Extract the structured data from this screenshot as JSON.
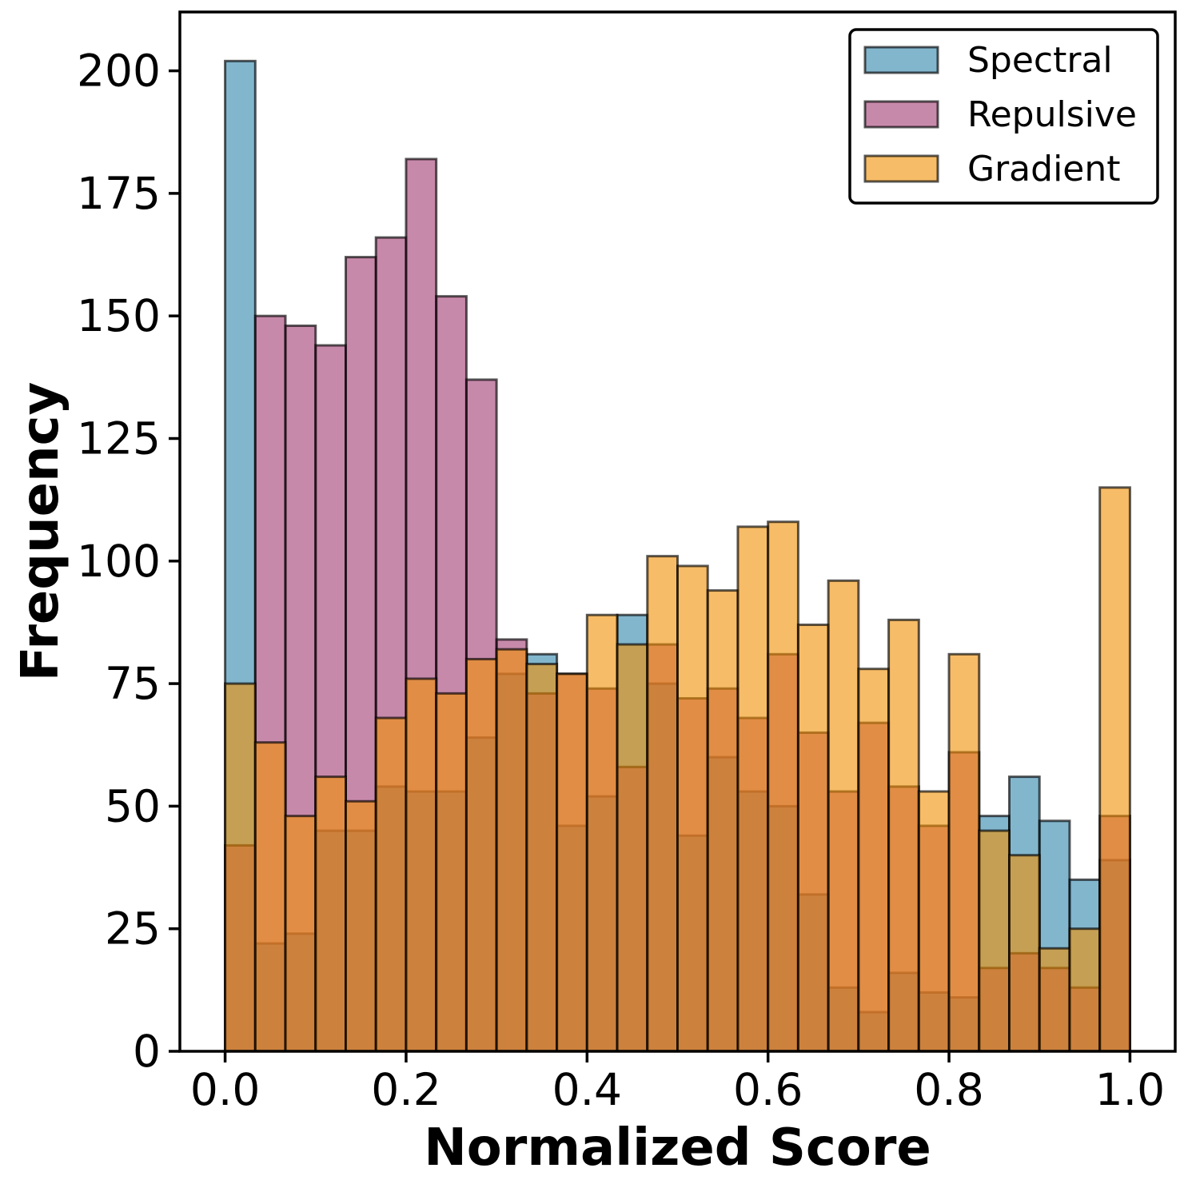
{
  "chart_data": {
    "type": "histogram",
    "title": "",
    "xlabel": "Normalized Score",
    "ylabel": "Frequency",
    "xlim": [
      -0.05,
      1.05
    ],
    "ylim": [
      0,
      212
    ],
    "xticks": [
      0.0,
      0.2,
      0.4,
      0.6,
      0.8,
      1.0
    ],
    "xtick_labels": [
      "0.0",
      "0.2",
      "0.4",
      "0.6",
      "0.8",
      "1.0"
    ],
    "yticks": [
      0,
      25,
      50,
      75,
      100,
      125,
      150,
      175,
      200
    ],
    "ytick_labels": [
      "0",
      "25",
      "50",
      "75",
      "100",
      "125",
      "150",
      "175",
      "200"
    ],
    "bins": 30,
    "bin_range": [
      0.0,
      1.0
    ],
    "legend_position": "top-right",
    "series": [
      {
        "name": "Spectral",
        "color": "#2E86AB",
        "values": [
          202,
          22,
          24,
          45,
          45,
          54,
          53,
          53,
          64,
          77,
          81,
          46,
          52,
          89,
          75,
          44,
          60,
          53,
          50,
          32,
          13,
          8,
          16,
          12,
          11,
          48,
          56,
          47,
          35,
          39
        ]
      },
      {
        "name": "Repulsive",
        "color": "#A23B72",
        "values": [
          42,
          150,
          148,
          144,
          162,
          166,
          182,
          154,
          137,
          84,
          73,
          77,
          74,
          58,
          83,
          72,
          74,
          68,
          81,
          65,
          53,
          67,
          54,
          46,
          61,
          17,
          20,
          17,
          13,
          48
        ]
      },
      {
        "name": "Gradient",
        "color": "#F18F01",
        "values": [
          75,
          63,
          48,
          56,
          51,
          68,
          76,
          73,
          80,
          82,
          79,
          77,
          89,
          83,
          101,
          99,
          94,
          107,
          108,
          87,
          96,
          78,
          88,
          53,
          81,
          45,
          40,
          21,
          25,
          115
        ]
      }
    ]
  }
}
